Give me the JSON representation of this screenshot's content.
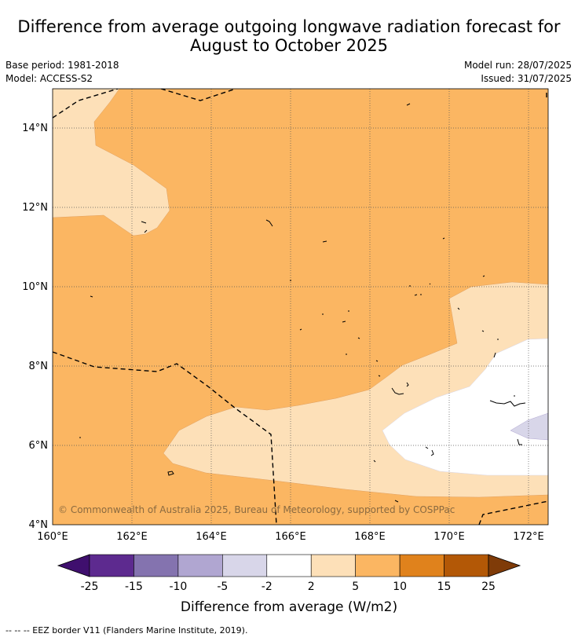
{
  "title": {
    "line1": "Difference from average outgoing longwave radiation forecast for",
    "line2": "August to October 2025"
  },
  "meta": {
    "base_period": "Base period: 1981-2018",
    "model": "Model: ACCESS-S2",
    "model_run": "Model run: 28/07/2025",
    "issued": "Issued: 31/07/2025"
  },
  "copyright": "© Commonwealth of Australia 2025, Bureau of Meteorology, supported by COSPPac",
  "axes": {
    "x_ticks": [
      "160°E",
      "162°E",
      "164°E",
      "166°E",
      "168°E",
      "170°E",
      "172°E"
    ],
    "y_ticks": [
      "4°N",
      "6°N",
      "8°N",
      "10°N",
      "12°N",
      "14°N"
    ]
  },
  "colorbar": {
    "title": "Difference from average (W/m2)",
    "labels": [
      "-25",
      "-15",
      "-10",
      "-5",
      "-2",
      "2",
      "5",
      "10",
      "15",
      "25"
    ],
    "colors": [
      "#3f0f6e",
      "#5d2a8f",
      "#8473af",
      "#b0a6d1",
      "#d8d6e9",
      "#ffffff",
      "#fde0b8",
      "#fbb662",
      "#e0821c",
      "#b35806",
      "#7f3b08"
    ]
  },
  "footer": "--  --  -- EEZ border V11 (Flanders Marine Institute, 2019)."
}
